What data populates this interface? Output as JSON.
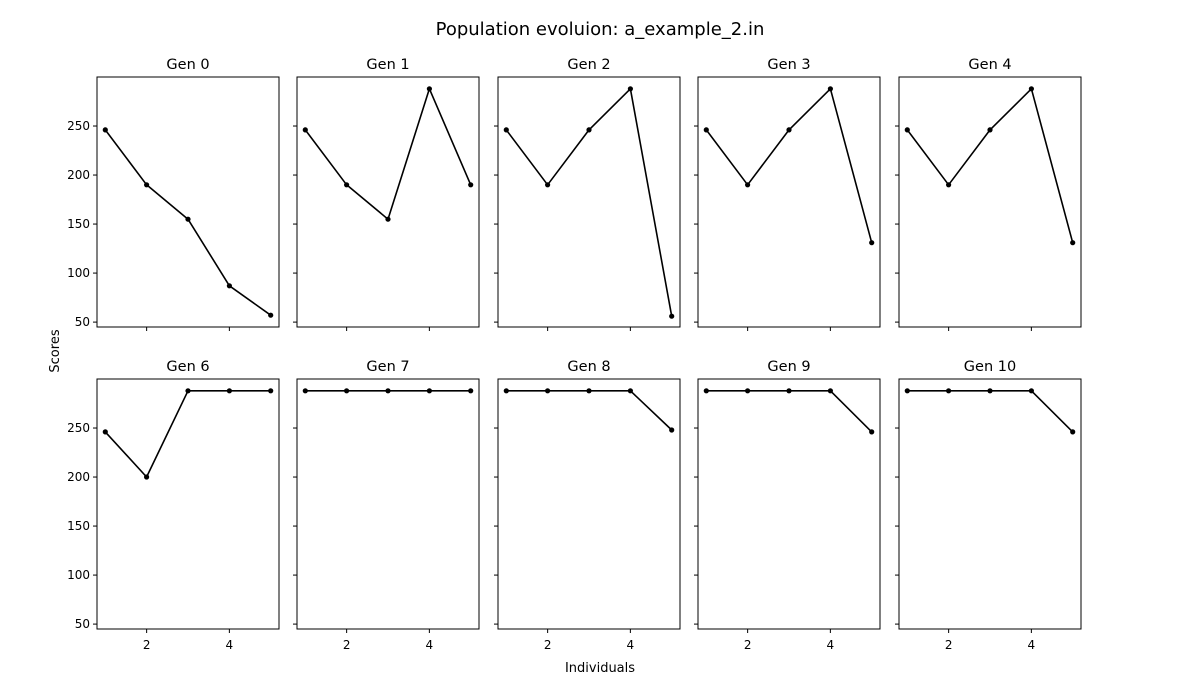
{
  "figure": {
    "title": "Population evoluion: a_example_2.in",
    "xlabel": "Individuals",
    "ylabel": "Scores"
  },
  "colors": {
    "line": "#000000",
    "axes": "#000000",
    "background": "#ffffff"
  },
  "chart_data": {
    "type": "line",
    "layout": "grid 2 rows x 5 columns, shared x and y axes",
    "title": "Population evoluion: a_example_2.in",
    "xlabel": "Individuals",
    "ylabel": "Scores",
    "xlim": [
      0.8,
      5.2
    ],
    "ylim": [
      45,
      300
    ],
    "xticks": [
      2,
      4
    ],
    "yticks": [
      50,
      100,
      150,
      200,
      250
    ],
    "grid": false,
    "panels": [
      {
        "title": "Gen 0",
        "x": [
          1,
          2,
          3,
          4,
          5
        ],
        "y": [
          246,
          190,
          155,
          87,
          57
        ]
      },
      {
        "title": "Gen 1",
        "x": [
          1,
          2,
          3,
          4,
          5
        ],
        "y": [
          246,
          190,
          155,
          288,
          190
        ]
      },
      {
        "title": "Gen 2",
        "x": [
          1,
          2,
          3,
          4,
          5
        ],
        "y": [
          246,
          190,
          246,
          288,
          56
        ]
      },
      {
        "title": "Gen 3",
        "x": [
          1,
          2,
          3,
          4,
          5
        ],
        "y": [
          246,
          190,
          246,
          288,
          131
        ]
      },
      {
        "title": "Gen 4",
        "x": [
          1,
          2,
          3,
          4,
          5
        ],
        "y": [
          246,
          190,
          246,
          288,
          131
        ]
      },
      {
        "title": "Gen 6",
        "x": [
          1,
          2,
          3,
          4,
          5
        ],
        "y": [
          246,
          200,
          288,
          288,
          288
        ]
      },
      {
        "title": "Gen 7",
        "x": [
          1,
          2,
          3,
          4,
          5
        ],
        "y": [
          288,
          288,
          288,
          288,
          288
        ]
      },
      {
        "title": "Gen 8",
        "x": [
          1,
          2,
          3,
          4,
          5
        ],
        "y": [
          288,
          288,
          288,
          288,
          248
        ]
      },
      {
        "title": "Gen 9",
        "x": [
          1,
          2,
          3,
          4,
          5
        ],
        "y": [
          288,
          288,
          288,
          288,
          246
        ]
      },
      {
        "title": "Gen 10",
        "x": [
          1,
          2,
          3,
          4,
          5
        ],
        "y": [
          288,
          288,
          288,
          288,
          246
        ]
      }
    ]
  }
}
